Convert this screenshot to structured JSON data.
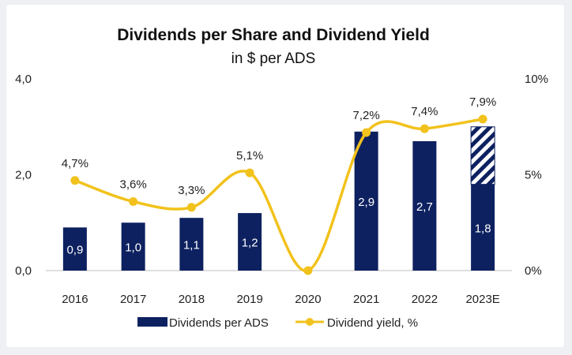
{
  "chart_data": {
    "type": "bar",
    "title": "Dividends per Share and Dividend Yield",
    "subtitle": "in $ per ADS",
    "categories": [
      "2016",
      "2017",
      "2018",
      "2019",
      "2020",
      "2021",
      "2022",
      "2023E"
    ],
    "series": [
      {
        "name": "Dividends per ADS",
        "type": "bar",
        "axis": "left",
        "values": [
          0.9,
          1.0,
          1.1,
          1.2,
          0,
          2.9,
          2.7,
          1.8
        ],
        "labels": [
          "0,9",
          "1,0",
          "1,1",
          "1,2",
          "",
          "2,9",
          "2,7",
          "1,8"
        ],
        "color": "#0d2160"
      },
      {
        "name": "Dividend yield, %",
        "type": "line",
        "axis": "right",
        "values": [
          4.7,
          3.6,
          3.3,
          5.1,
          0,
          7.2,
          7.4,
          7.9
        ],
        "labels": [
          "4,7%",
          "3,6%",
          "3,3%",
          "5,1%",
          "",
          "7,2%",
          "7,4%",
          "7,9%"
        ],
        "color": "#f2c21c"
      }
    ],
    "projected": {
      "category": "2023E",
      "from": 1.8,
      "to": 3.0,
      "pattern": "diagonal-hatch"
    },
    "y_left": {
      "min": 0,
      "max": 4,
      "ticks": [
        0,
        2,
        4
      ],
      "tick_labels": [
        "0,0",
        "2,0",
        "4,0"
      ]
    },
    "y_right": {
      "min": 0,
      "max": 10,
      "ticks": [
        0,
        5,
        10
      ],
      "tick_labels": [
        "0%",
        "5%",
        "10%"
      ]
    },
    "grid": false,
    "legend": {
      "position": "bottom",
      "items": [
        "Dividends per ADS",
        "Dividend yield, %"
      ]
    }
  }
}
